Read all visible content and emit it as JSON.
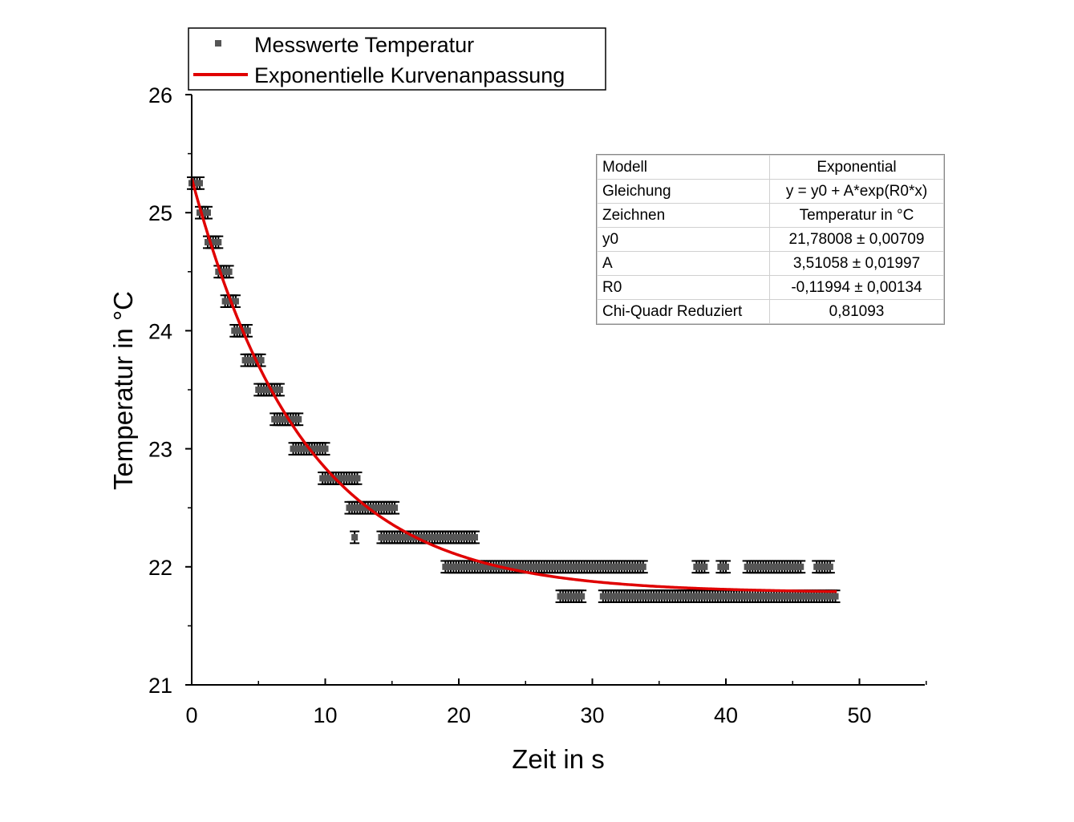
{
  "chart_data": {
    "type": "scatter",
    "xlabel": "Zeit in s",
    "ylabel": "Temperatur in °C",
    "xlim": [
      0,
      55
    ],
    "ylim": [
      21,
      26
    ],
    "x_ticks": [
      "0",
      "10",
      "20",
      "30",
      "40",
      "50"
    ],
    "y_ticks": [
      "21",
      "22",
      "23",
      "24",
      "25",
      "26"
    ],
    "legend_position": "top-left",
    "colors": {
      "measurements": "#555555",
      "error_bars": "#000000",
      "fit": "#e00000"
    },
    "series": [
      {
        "name": "Messwerte Temperatur",
        "kind": "scatter-with-error-bars",
        "y_error": 0.05,
        "points": [
          {
            "x_start": 0.0,
            "x_end": 0.6,
            "y": 25.25
          },
          {
            "x_start": 0.6,
            "x_end": 1.2,
            "y": 25.0
          },
          {
            "x_start": 1.2,
            "x_end": 2.0,
            "y": 24.75
          },
          {
            "x_start": 2.0,
            "x_end": 2.8,
            "y": 24.5
          },
          {
            "x_start": 2.5,
            "x_end": 3.4,
            "y": 24.25
          },
          {
            "x_start": 3.2,
            "x_end": 4.2,
            "y": 24.0
          },
          {
            "x_start": 4.0,
            "x_end": 5.2,
            "y": 23.75
          },
          {
            "x_start": 5.0,
            "x_end": 6.6,
            "y": 23.5
          },
          {
            "x_start": 6.2,
            "x_end": 8.0,
            "y": 23.25
          },
          {
            "x_start": 7.6,
            "x_end": 10.0,
            "y": 23.0
          },
          {
            "x_start": 9.8,
            "x_end": 12.4,
            "y": 22.75
          },
          {
            "x_start": 11.8,
            "x_end": 15.2,
            "y": 22.5
          },
          {
            "x_start": 12.2,
            "x_end": 12.2,
            "y": 22.25
          },
          {
            "x_start": 14.2,
            "x_end": 21.2,
            "y": 22.25
          },
          {
            "x_start": 19.0,
            "x_end": 33.8,
            "y": 22.0
          },
          {
            "x_start": 27.6,
            "x_end": 29.2,
            "y": 21.75
          },
          {
            "x_start": 30.8,
            "x_end": 48.2,
            "y": 21.75
          },
          {
            "x_start": 37.8,
            "x_end": 38.4,
            "y": 22.0
          },
          {
            "x_start": 39.6,
            "x_end": 40.0,
            "y": 22.0
          },
          {
            "x_start": 41.6,
            "x_end": 45.6,
            "y": 22.0
          },
          {
            "x_start": 46.8,
            "x_end": 47.8,
            "y": 22.0
          }
        ]
      },
      {
        "name": "Exponentielle Kurvenanpassung",
        "kind": "line",
        "model": {
          "y0": 21.78008,
          "A": 3.51058,
          "R0": -0.11994
        },
        "x_range": [
          0,
          48.3
        ]
      }
    ],
    "fit_table": [
      {
        "key": "Modell",
        "value": "Exponential"
      },
      {
        "key": "Gleichung",
        "value": "y = y0 + A*exp(R0*x)"
      },
      {
        "key": "Zeichnen",
        "value": "Temperatur in °C"
      },
      {
        "key": "y0",
        "value": "21,78008 ± 0,00709"
      },
      {
        "key": "A",
        "value": "3,51058 ± 0,01997"
      },
      {
        "key": "R0",
        "value": "-0,11994 ± 0,00134"
      },
      {
        "key": "Chi-Quadr Reduziert",
        "value": "0,81093"
      }
    ]
  }
}
